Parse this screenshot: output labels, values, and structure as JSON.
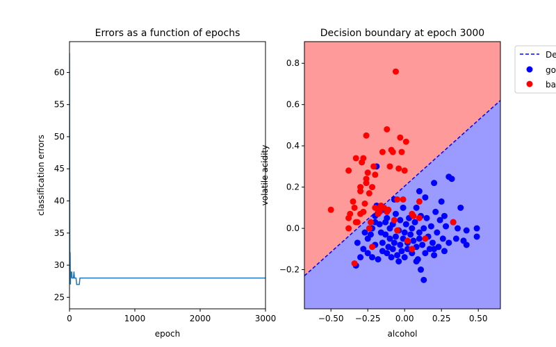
{
  "chart_data": [
    {
      "type": "line",
      "title": "Errors as a function of epochs",
      "xlabel": "epoch",
      "ylabel": "classification errors",
      "xlim": [
        0,
        3000
      ],
      "ylim": [
        23.2,
        64.8
      ],
      "xticks": [
        0,
        1000,
        2000,
        3000
      ],
      "yticks": [
        25,
        30,
        35,
        40,
        45,
        50,
        55,
        60
      ],
      "grid": false,
      "series": [
        {
          "color": "#1f77b4",
          "x": [
            0,
            3,
            6,
            10,
            14,
            18,
            22,
            26,
            30,
            34,
            40,
            46,
            52,
            60,
            68,
            76,
            84,
            92,
            100,
            110,
            120,
            130,
            140,
            150,
            160,
            170,
            180,
            250,
            1000,
            2000,
            3000
          ],
          "y": [
            63,
            47,
            30,
            32,
            27,
            29,
            28,
            29,
            28,
            29,
            28,
            28,
            28,
            28,
            29,
            28,
            28,
            28,
            28,
            27,
            27,
            27,
            27,
            27,
            28,
            28,
            28,
            28,
            28,
            28,
            28
          ]
        }
      ]
    },
    {
      "type": "scatter",
      "title": "Decision boundary at epoch 3000",
      "xlabel": "alcohol",
      "ylabel": "volatile acidity",
      "xlim": [
        -0.68,
        0.65
      ],
      "ylim": [
        -0.39,
        0.905
      ],
      "xticks": [
        -0.5,
        -0.25,
        0.0,
        0.25,
        0.5
      ],
      "xtick_labels": [
        "−0.50",
        "−0.25",
        "0.00",
        "0.25",
        "0.50"
      ],
      "yticks": [
        -0.2,
        0.0,
        0.2,
        0.4,
        0.6,
        0.8
      ],
      "ytick_labels": [
        "−0.2",
        "0.0",
        "0.2",
        "0.4",
        "0.6",
        "0.8"
      ],
      "grid": false,
      "legend_placement": "upper-right-outside",
      "boundary": {
        "name": "Decision boundary",
        "legend_label": "De",
        "color": "#0000ff",
        "x": [
          -0.68,
          0.65
        ],
        "y": [
          -0.23,
          0.62
        ]
      },
      "regions": {
        "upper_color": "#ff9a9a",
        "lower_color": "#9a9aff"
      },
      "series": [
        {
          "name": "good",
          "legend_label": "go",
          "color": "#0000ff",
          "points": [
            [
              -0.33,
              -0.18
            ],
            [
              -0.3,
              -0.14
            ],
            [
              -0.28,
              -0.1
            ],
            [
              -0.25,
              -0.12
            ],
            [
              -0.25,
              -0.05
            ],
            [
              -0.23,
              -0.03
            ],
            [
              -0.22,
              0.0
            ],
            [
              -0.2,
              0.03
            ],
            [
              -0.2,
              -0.08
            ],
            [
              -0.2,
              0.06
            ],
            [
              -0.18,
              -0.15
            ],
            [
              -0.17,
              0.02
            ],
            [
              -0.17,
              0.08
            ],
            [
              -0.15,
              -0.07
            ],
            [
              -0.15,
              -0.11
            ],
            [
              -0.13,
              -0.03
            ],
            [
              -0.13,
              0.03
            ],
            [
              -0.12,
              0.05
            ],
            [
              -0.12,
              -0.12
            ],
            [
              -0.11,
              -0.09
            ],
            [
              -0.1,
              0.0
            ],
            [
              -0.1,
              -0.05
            ],
            [
              -0.09,
              -0.14
            ],
            [
              -0.08,
              0.02
            ],
            [
              -0.08,
              -0.1
            ],
            [
              -0.07,
              -0.07
            ],
            [
              -0.06,
              0.07
            ],
            [
              -0.06,
              -0.04
            ],
            [
              -0.05,
              -0.13
            ],
            [
              -0.04,
              -0.01
            ],
            [
              -0.04,
              -0.16
            ],
            [
              -0.03,
              0.04
            ],
            [
              -0.03,
              -0.08
            ],
            [
              -0.02,
              -0.11
            ],
            [
              -0.01,
              0.1
            ],
            [
              -0.01,
              -0.05
            ],
            [
              0.0,
              -0.02
            ],
            [
              0.0,
              -0.14
            ],
            [
              0.01,
              0.02
            ],
            [
              0.02,
              -0.07
            ],
            [
              0.02,
              -0.1
            ],
            [
              0.03,
              0.05
            ],
            [
              0.04,
              -0.03
            ],
            [
              0.05,
              -0.12
            ],
            [
              0.05,
              0.0
            ],
            [
              0.06,
              -0.06
            ],
            [
              0.07,
              0.03
            ],
            [
              0.08,
              -0.09
            ],
            [
              0.08,
              0.1
            ],
            [
              0.09,
              -0.15
            ],
            [
              0.1,
              -0.02
            ],
            [
              0.1,
              -0.05
            ],
            [
              0.11,
              -0.2
            ],
            [
              0.11,
              0.06
            ],
            [
              0.12,
              -0.08
            ],
            [
              0.13,
              -0.25
            ],
            [
              0.13,
              0.0
            ],
            [
              0.14,
              -0.12
            ],
            [
              0.15,
              0.05
            ],
            [
              0.16,
              -0.04
            ],
            [
              0.17,
              -0.1
            ],
            [
              0.18,
              0.01
            ],
            [
              0.19,
              -0.07
            ],
            [
              0.2,
              0.22
            ],
            [
              0.2,
              -0.13
            ],
            [
              0.21,
              0.08
            ],
            [
              0.22,
              -0.02
            ],
            [
              0.23,
              -0.09
            ],
            [
              0.24,
              0.04
            ],
            [
              0.25,
              0.13
            ],
            [
              0.26,
              -0.05
            ],
            [
              0.27,
              -0.11
            ],
            [
              0.28,
              0.01
            ],
            [
              0.3,
              0.25
            ],
            [
              0.3,
              -0.07
            ],
            [
              0.32,
              0.24
            ],
            [
              0.33,
              0.03
            ],
            [
              0.35,
              -0.05
            ],
            [
              0.38,
              0.1
            ],
            [
              0.4,
              -0.06
            ],
            [
              0.42,
              -0.08
            ],
            [
              0.42,
              -0.01
            ],
            [
              0.49,
              0.0
            ],
            [
              0.49,
              -0.04
            ],
            [
              -0.32,
              -0.07
            ],
            [
              -0.27,
              -0.02
            ],
            [
              -0.22,
              -0.14
            ],
            [
              -0.19,
              0.11
            ],
            [
              -0.16,
              -0.02
            ],
            [
              -0.14,
              0.09
            ],
            [
              -0.07,
              0.14
            ],
            [
              0.08,
              -0.16
            ],
            [
              0.14,
              0.15
            ],
            [
              0.2,
              -0.1
            ],
            [
              0.27,
              0.06
            ],
            [
              0.36,
              0.0
            ],
            [
              -0.19,
              0.3
            ],
            [
              0.1,
              0.18
            ]
          ]
        },
        {
          "name": "bad",
          "legend_label": "ba",
          "color": "#ff0000",
          "points": [
            [
              -0.5,
              0.09
            ],
            [
              -0.38,
              0.28
            ],
            [
              -0.38,
              0.05
            ],
            [
              -0.37,
              0.07
            ],
            [
              -0.35,
              0.13
            ],
            [
              -0.34,
              0.1
            ],
            [
              -0.33,
              0.34
            ],
            [
              -0.32,
              0.03
            ],
            [
              -0.3,
              0.2
            ],
            [
              -0.3,
              0.18
            ],
            [
              -0.29,
              0.32
            ],
            [
              -0.28,
              0.34
            ],
            [
              -0.28,
              0.08
            ],
            [
              -0.27,
              0.12
            ],
            [
              -0.26,
              0.45
            ],
            [
              -0.26,
              0.24
            ],
            [
              -0.26,
              0.22
            ],
            [
              -0.25,
              0.27
            ],
            [
              -0.24,
              0.17
            ],
            [
              -0.23,
              0.03
            ],
            [
              -0.22,
              0.2
            ],
            [
              -0.21,
              0.3
            ],
            [
              -0.2,
              0.26
            ],
            [
              -0.2,
              0.1
            ],
            [
              -0.18,
              0.07
            ],
            [
              -0.17,
              0.08
            ],
            [
              -0.16,
              0.11
            ],
            [
              -0.15,
              0.37
            ],
            [
              -0.14,
              0.1
            ],
            [
              -0.12,
              0.48
            ],
            [
              -0.1,
              0.3
            ],
            [
              -0.09,
              0.38
            ],
            [
              -0.08,
              0.37
            ],
            [
              -0.06,
              0.76
            ],
            [
              -0.05,
              0.14
            ],
            [
              -0.04,
              0.29
            ],
            [
              -0.03,
              0.44
            ],
            [
              -0.02,
              0.37
            ],
            [
              -0.01,
              0.14
            ],
            [
              0.0,
              0.28
            ],
            [
              0.01,
              0.42
            ],
            [
              0.05,
              0.07
            ],
            [
              0.06,
              0.06
            ],
            [
              0.1,
              0.13
            ],
            [
              0.14,
              -0.05
            ],
            [
              0.33,
              0.03
            ],
            [
              -0.34,
              -0.17
            ],
            [
              -0.38,
              0.0
            ],
            [
              -0.22,
              -0.09
            ],
            [
              -0.12,
              0.08
            ],
            [
              0.05,
              -0.1
            ],
            [
              0.02,
              -0.06
            ],
            [
              -0.05,
              -0.01
            ],
            [
              -0.07,
              0.04
            ],
            [
              -0.3,
              0.07
            ],
            [
              -0.33,
              0.03
            ],
            [
              -0.18,
              0.09
            ],
            [
              -0.11,
              0.09
            ],
            [
              -0.24,
              0.0
            ],
            [
              0.1,
              0.05
            ]
          ]
        }
      ]
    }
  ]
}
